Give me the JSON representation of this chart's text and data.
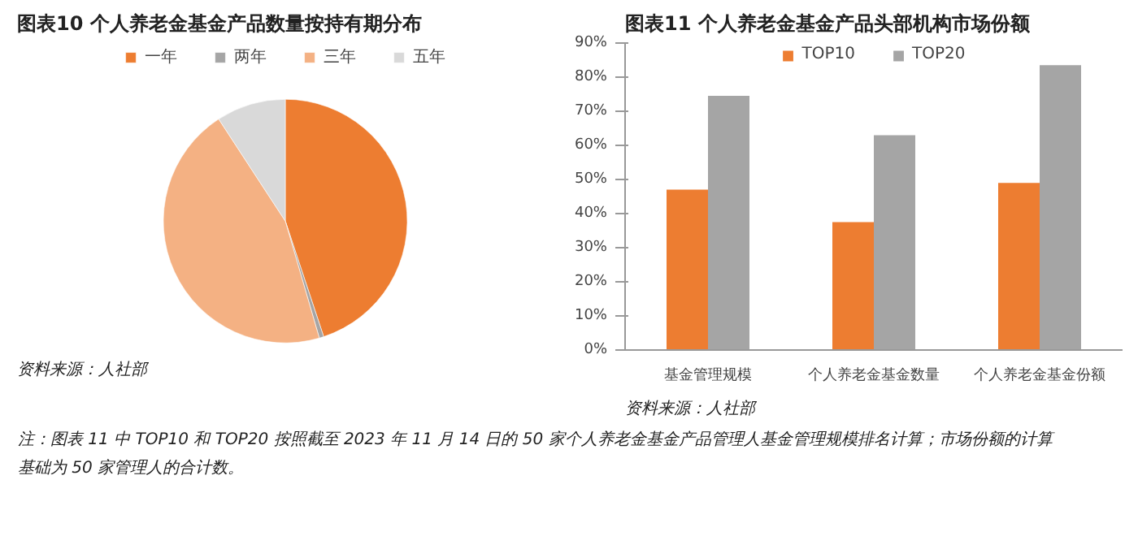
{
  "chart_data": [
    {
      "type": "pie",
      "title": "图表10    个人养老金基金产品数量按持有期分布",
      "categories": [
        "一年",
        "两年",
        "三年",
        "五年"
      ],
      "values": [
        44.9,
        0.6,
        45.3,
        9.2
      ],
      "colors": [
        "#ed7d31",
        "#a5a5a5",
        "#f4b183",
        "#d9d9d9"
      ],
      "legend": "top",
      "annotations": [
        "资料来源：人社部"
      ]
    },
    {
      "type": "bar",
      "title": "图表11    个人养老金基金产品头部机构市场份额",
      "categories": [
        "基金管理规模",
        "个人养老金基金数量",
        "个人养老金基金份额"
      ],
      "series": [
        {
          "name": "TOP10",
          "color": "#ed7d31",
          "values": [
            47,
            37.5,
            49
          ]
        },
        {
          "name": "TOP20",
          "color": "#a5a5a5",
          "values": [
            74.5,
            63,
            83.5
          ]
        }
      ],
      "ylim": [
        0,
        90
      ],
      "yticks": [
        {
          "value": 0,
          "label": "0%"
        },
        {
          "value": 10,
          "label": "10%"
        },
        {
          "value": 20,
          "label": "20%"
        },
        {
          "value": 30,
          "label": "30%"
        },
        {
          "value": 40,
          "label": "40%"
        },
        {
          "value": 50,
          "label": "50%"
        },
        {
          "value": 60,
          "label": "60%"
        },
        {
          "value": 70,
          "label": "70%"
        },
        {
          "value": 80,
          "label": "80%"
        },
        {
          "value": 90,
          "label": "90%"
        }
      ],
      "grid": false,
      "legend": "top",
      "annotations": [
        "资料来源：人社部",
        "注：图表 11 中 TOP10 和 TOP20 按照截至 2023 年 11 月 14 日的 50 家个人养老金基金产品管理人基金管理规模排名计算；市场份额的计算基础为 50 家管理人的合计数。"
      ]
    }
  ]
}
